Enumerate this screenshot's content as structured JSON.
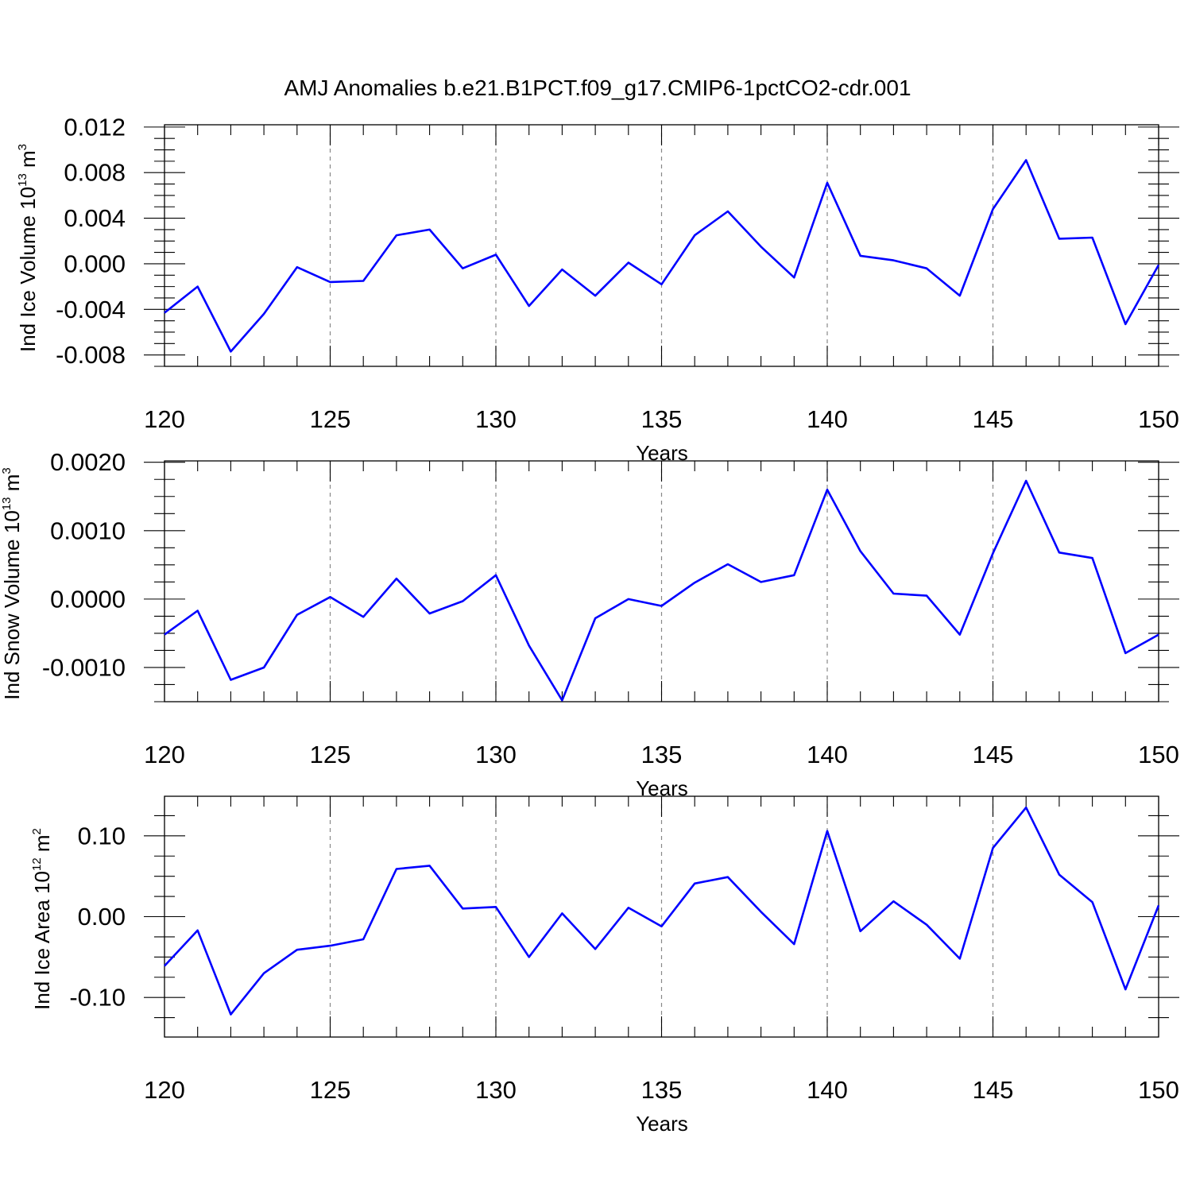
{
  "title": "AMJ Anomalies b.e21.B1PCT.f09_g17.CMIP6-1pctCO2-cdr.001",
  "chart_data": [
    {
      "type": "line",
      "ylabel": {
        "text": "Ind Ice Volume 10",
        "sup": "13",
        "unit": " m",
        "unit_sup": "3"
      },
      "xlabel": "Years",
      "xlim": [
        120,
        150
      ],
      "ylim": [
        -0.009,
        0.0122
      ],
      "xticks": [
        120,
        125,
        130,
        135,
        140,
        145,
        150
      ],
      "xtick_labels": [
        "120",
        "125",
        "130",
        "135",
        "140",
        "145",
        "150"
      ],
      "yticks": [
        -0.008,
        -0.004,
        0.0,
        0.004,
        0.008,
        0.012
      ],
      "ytick_labels": [
        "-0.008",
        "-0.004",
        "0.000",
        "0.004",
        "0.008",
        "0.012"
      ],
      "color": "#0000ff",
      "x": [
        120,
        121,
        122,
        123,
        124,
        125,
        126,
        127,
        128,
        129,
        130,
        131,
        132,
        133,
        134,
        135,
        136,
        137,
        138,
        139,
        140,
        141,
        142,
        143,
        144,
        145,
        146,
        147,
        148,
        149,
        150
      ],
      "values": [
        -0.0043,
        -0.002,
        -0.0077,
        -0.0044,
        -0.0003,
        -0.0016,
        -0.0015,
        0.0025,
        0.003,
        -0.0004,
        0.0008,
        -0.0037,
        -0.0005,
        -0.0028,
        0.0001,
        -0.0018,
        0.0025,
        0.0046,
        0.0015,
        -0.0012,
        0.0071,
        0.0007,
        0.0003,
        -0.0004,
        -0.0028,
        0.0048,
        0.0091,
        0.0022,
        0.0023,
        -0.0053,
        -0.0001
      ]
    },
    {
      "type": "line",
      "ylabel": {
        "text": "Ind Snow Volume 10",
        "sup": "13",
        "unit": " m",
        "unit_sup": "3"
      },
      "xlabel": "Years",
      "xlim": [
        120,
        150
      ],
      "ylim": [
        -0.0015,
        0.00202
      ],
      "xticks": [
        120,
        125,
        130,
        135,
        140,
        145,
        150
      ],
      "xtick_labels": [
        "120",
        "125",
        "130",
        "135",
        "140",
        "145",
        "150"
      ],
      "yticks": [
        -0.001,
        0.0,
        0.001,
        0.002
      ],
      "ytick_labels": [
        "-0.0010",
        "0.0000",
        "0.0010",
        "0.0020"
      ],
      "color": "#0000ff",
      "x": [
        120,
        121,
        122,
        123,
        124,
        125,
        126,
        127,
        128,
        129,
        130,
        131,
        132,
        133,
        134,
        135,
        136,
        137,
        138,
        139,
        140,
        141,
        142,
        143,
        144,
        145,
        146,
        147,
        148,
        149,
        150
      ],
      "values": [
        -0.00052,
        -0.00017,
        -0.00118,
        -0.001,
        -0.00023,
        3e-05,
        -0.00026,
        0.0003,
        -0.00021,
        -3e-05,
        0.00035,
        -0.00068,
        -0.00148,
        -0.00028,
        0.0,
        -0.0001,
        0.00024,
        0.00051,
        0.00025,
        0.00035,
        0.0016,
        0.0007,
        8e-05,
        5e-05,
        -0.00052,
        0.00067,
        0.00173,
        0.00068,
        0.0006,
        -0.00079,
        -0.00052
      ]
    },
    {
      "type": "line",
      "ylabel": {
        "text": "Ind Ice Area 10",
        "sup": "12",
        "unit": " m",
        "unit_sup": "2"
      },
      "xlabel": "Years",
      "xlim": [
        120,
        150
      ],
      "ylim": [
        -0.149,
        0.149
      ],
      "xticks": [
        120,
        125,
        130,
        135,
        140,
        145,
        150
      ],
      "xtick_labels": [
        "120",
        "125",
        "130",
        "135",
        "140",
        "145",
        "150"
      ],
      "yticks": [
        -0.1,
        0.0,
        0.1
      ],
      "ytick_labels": [
        "-0.10",
        "0.00",
        "0.10"
      ],
      "color": "#0000ff",
      "x": [
        120,
        121,
        122,
        123,
        124,
        125,
        126,
        127,
        128,
        129,
        130,
        131,
        132,
        133,
        134,
        135,
        136,
        137,
        138,
        139,
        140,
        141,
        142,
        143,
        144,
        145,
        146,
        147,
        148,
        149,
        150
      ],
      "values": [
        -0.061,
        -0.017,
        -0.121,
        -0.07,
        -0.041,
        -0.036,
        -0.028,
        0.059,
        0.063,
        0.01,
        0.012,
        -0.05,
        0.004,
        -0.04,
        0.011,
        -0.012,
        0.041,
        0.049,
        0.006,
        -0.034,
        0.106,
        -0.018,
        0.019,
        -0.01,
        -0.052,
        0.085,
        0.135,
        0.052,
        0.018,
        -0.09,
        0.014
      ]
    }
  ]
}
